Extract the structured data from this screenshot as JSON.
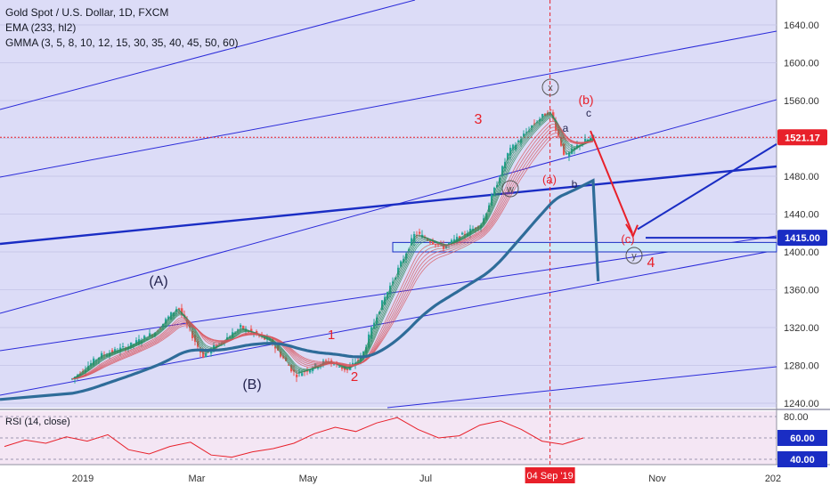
{
  "header": {
    "title": "Gold Spot / U.S. Dollar, 1D, FXCM",
    "ema": "EMA (233, hl2)",
    "gmma": "GMMA (3, 5, 8, 10, 12, 15, 30, 35, 40, 45, 50, 60)"
  },
  "colors": {
    "background": "#dcdcf7",
    "rsi_background": "#f4e6f4",
    "up": "#26a69a",
    "down": "#ef5350",
    "ema": "#2e6c99",
    "channel": "#2b2bd9",
    "bold_line": "#1a2dc4",
    "annotation_red": "#e8202a",
    "annotation_blue": "#1a2dc4",
    "price_level": "#e8202a",
    "support_zone": "#cfe8f7"
  },
  "chart_data": {
    "type": "candlestick",
    "instrument": "Gold Spot / U.S. Dollar",
    "timeframe": "1D",
    "y_axis": {
      "ticks": [
        "1640.00",
        "1600.00",
        "1560.00",
        "1520.00",
        "1480.00",
        "1440.00",
        "1400.00",
        "1360.00",
        "1320.00",
        "1280.00",
        "1240.00"
      ],
      "ylim": [
        1236,
        1664
      ]
    },
    "x_axis": {
      "ticks": [
        "2019",
        "Mar",
        "May",
        "Jul",
        "Sep",
        "Nov",
        "202"
      ],
      "highlight": "04 Sep '19"
    },
    "price_labels": [
      {
        "text": "1521.17",
        "style": "current",
        "value": 1521.17
      },
      {
        "text": "1415.00",
        "style": "level",
        "value": 1415.0
      }
    ],
    "close_path": [
      {
        "date": "2018-12-26",
        "close": 1265
      },
      {
        "date": "2019-01-10",
        "close": 1290
      },
      {
        "date": "2019-01-25",
        "close": 1300
      },
      {
        "date": "2019-02-08",
        "close": 1315
      },
      {
        "date": "2019-02-20",
        "close": 1342
      },
      {
        "date": "2019-03-05",
        "close": 1290
      },
      {
        "date": "2019-03-25",
        "close": 1320
      },
      {
        "date": "2019-04-10",
        "close": 1305
      },
      {
        "date": "2019-04-23",
        "close": 1270
      },
      {
        "date": "2019-05-10",
        "close": 1285
      },
      {
        "date": "2019-05-20",
        "close": 1275
      },
      {
        "date": "2019-05-28",
        "close": 1290
      },
      {
        "date": "2019-06-05",
        "close": 1335
      },
      {
        "date": "2019-06-25",
        "close": 1420
      },
      {
        "date": "2019-07-10",
        "close": 1405
      },
      {
        "date": "2019-07-30",
        "close": 1430
      },
      {
        "date": "2019-08-13",
        "close": 1505
      },
      {
        "date": "2019-08-26",
        "close": 1535
      },
      {
        "date": "2019-09-04",
        "close": 1550
      },
      {
        "date": "2019-09-12",
        "close": 1500
      },
      {
        "date": "2019-09-20",
        "close": 1515
      },
      {
        "date": "2019-09-27",
        "close": 1521.17
      }
    ],
    "rsi": {
      "label": "RSI (14, close)",
      "ticks": [
        "80.00",
        "60.00",
        "40.00"
      ],
      "levels": [
        80,
        60,
        40
      ],
      "values": [
        52,
        58,
        55,
        61,
        57,
        63,
        49,
        45,
        52,
        56,
        44,
        42,
        47,
        50,
        55,
        64,
        70,
        66,
        74,
        79,
        68,
        60,
        62,
        72,
        76,
        68,
        57,
        54,
        60
      ]
    },
    "wave_labels": [
      {
        "text": "(A)",
        "color": "navy"
      },
      {
        "text": "(B)",
        "color": "navy"
      },
      {
        "text": "1",
        "color": "red"
      },
      {
        "text": "2",
        "color": "red"
      },
      {
        "text": "3",
        "color": "red"
      },
      {
        "text": "4",
        "color": "red"
      },
      {
        "text": "(b)",
        "color": "red"
      },
      {
        "text": "(a)",
        "color": "red"
      },
      {
        "text": "(c)",
        "color": "red"
      },
      {
        "text": "a",
        "color": "navy"
      },
      {
        "text": "b",
        "color": "navy"
      },
      {
        "text": "c",
        "color": "navy"
      },
      {
        "text": "x",
        "color": "gray"
      },
      {
        "text": "w",
        "color": "gray"
      },
      {
        "text": "y",
        "color": "gray"
      }
    ]
  }
}
